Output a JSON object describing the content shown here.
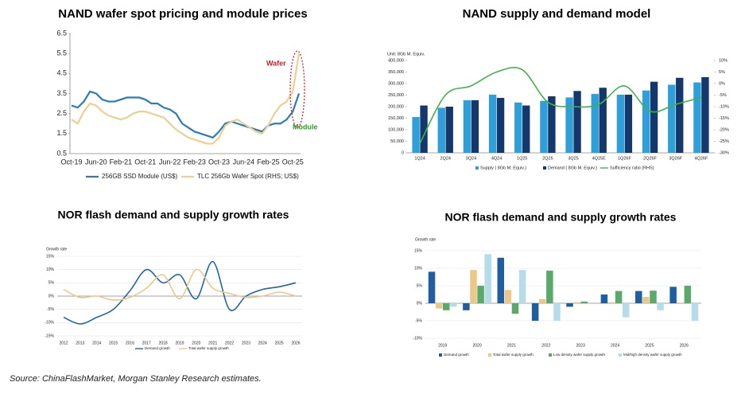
{
  "chart_data": [
    {
      "type": "line",
      "title": "NAND wafer spot pricing and module prices",
      "categories": [
        "Oct-19",
        null,
        null,
        null,
        "Jun-20",
        null,
        null,
        null,
        "Feb-21",
        null,
        null,
        null,
        "Oct-21",
        null,
        null,
        null,
        "Jun-22",
        null,
        null,
        null,
        "Feb-23",
        null,
        null,
        null,
        "Oct-23",
        null,
        null,
        null,
        "Jun-24",
        null,
        null,
        null,
        "Feb-25",
        null,
        null,
        null,
        "Oct-25",
        null
      ],
      "series": [
        {
          "name": "256GB SSD Module (US$)",
          "color": "#2b7bb9",
          "values": [
            2.9,
            2.8,
            3.1,
            3.6,
            3.5,
            3.2,
            3.1,
            3.1,
            3.2,
            3.3,
            3.3,
            3.3,
            3.2,
            3.0,
            3.0,
            2.8,
            2.7,
            2.5,
            2.0,
            1.8,
            1.6,
            1.5,
            1.4,
            1.3,
            1.6,
            2.0,
            2.1,
            2.0,
            1.9,
            1.8,
            1.7,
            1.6,
            1.9,
            2.0,
            2.0,
            2.2,
            2.6,
            3.5
          ]
        },
        {
          "name": "TLC 256Gb Wafer Spot (RHS; US$)",
          "color": "#ecd08f",
          "values": [
            2.2,
            2.0,
            2.6,
            3.0,
            2.9,
            2.6,
            2.4,
            2.3,
            2.2,
            2.3,
            2.5,
            2.6,
            2.6,
            2.5,
            2.4,
            2.3,
            2.0,
            1.7,
            1.5,
            1.3,
            1.2,
            1.1,
            1.0,
            1.0,
            1.3,
            1.9,
            2.1,
            2.2,
            2.0,
            1.8,
            1.6,
            1.5,
            1.9,
            2.5,
            2.9,
            3.1,
            3.6,
            5.5
          ]
        }
      ],
      "ylim": [
        0.5,
        6.5
      ],
      "yticks": [
        0.5,
        1.5,
        2.5,
        3.5,
        4.5,
        5.5,
        6.5
      ],
      "grid": false,
      "annotations": [
        {
          "text": "Wafer",
          "color": "#d0202a"
        },
        {
          "text": "Module",
          "color": "#2aa02a"
        }
      ]
    },
    {
      "type": "bar",
      "title": "NAND supply and demand model",
      "ylabel": "Unit: 8Gb M. Equiv.",
      "categories": [
        "1Q24",
        "2Q24",
        "3Q24",
        "4Q24",
        "1Q25",
        "2Q25",
        "3Q25",
        "4Q25E",
        "1Q26F",
        "2Q26F",
        "3Q26F",
        "4Q26F"
      ],
      "series": [
        {
          "name": "Supply ( 8Gb M. Equiv.)",
          "color": "#2e9fd8",
          "values": [
            155000,
            195000,
            228000,
            252000,
            218000,
            225000,
            240000,
            255000,
            252000,
            270000,
            295000,
            305000
          ]
        },
        {
          "name": "Demand ( 8Gb M. Equiv.)",
          "color": "#14386b",
          "values": [
            205000,
            200000,
            228000,
            238000,
            205000,
            245000,
            268000,
            282000,
            252000,
            308000,
            325000,
            328000
          ]
        },
        {
          "name": "Sufficiency ratio (RHS)",
          "color": "#3cb44b",
          "type": "line",
          "axis": "y2",
          "values": [
            -26,
            -5,
            -1,
            5,
            6,
            -8,
            -10,
            -9,
            -1,
            -12,
            -9,
            -6
          ]
        }
      ],
      "ylim": [
        0,
        400000
      ],
      "yticks": [
        0,
        {
          "value": 50000,
          "label": "50,000"
        },
        {
          "value": 100000,
          "label": "100,000"
        },
        {
          "value": 150000,
          "label": "150,000"
        },
        {
          "value": 200000,
          "label": "200,000"
        },
        {
          "value": 250000,
          "label": "250,000"
        },
        {
          "value": 300000,
          "label": "300,000"
        },
        {
          "value": 350000,
          "label": "350,000"
        },
        {
          "value": 400000,
          "label": "400,000"
        }
      ],
      "y2lim": [
        -30,
        10
      ],
      "y2ticks": [
        {
          "value": -30,
          "label": "-30%"
        },
        {
          "value": -25,
          "label": "-25%"
        },
        {
          "value": -20,
          "label": "-20%"
        },
        {
          "value": -15,
          "label": "-15%"
        },
        {
          "value": -10,
          "label": "-10%"
        },
        {
          "value": -5,
          "label": "-5%"
        },
        {
          "value": 0,
          "label": "0%"
        },
        {
          "value": 5,
          "label": "5%"
        },
        {
          "value": 10,
          "label": "10%"
        }
      ],
      "grid": false
    },
    {
      "type": "line",
      "title": "NOR flash demand and supply growth rates",
      "ylabel": "Growth rate",
      "smooth": true,
      "categories": [
        "2012",
        "2013",
        "2014",
        "2015",
        "2016",
        "2017",
        "2018",
        "2019",
        "2020",
        "2021",
        "2022",
        "2023",
        "2024",
        "2025",
        "2026"
      ],
      "series": [
        {
          "name": "Demand growth",
          "color": "#2166a8",
          "values": [
            -8,
            -10.5,
            -8,
            -5,
            2,
            10,
            5,
            8,
            -1,
            13,
            -5,
            0,
            2.5,
            3.5,
            5
          ]
        },
        {
          "name": "Total wafer supply growth",
          "color": "#e9c98a",
          "values": [
            2.5,
            -0.5,
            0,
            -1.5,
            -0.5,
            3,
            8,
            -1,
            10,
            3,
            1,
            -0.5,
            0,
            1.5,
            0
          ]
        }
      ],
      "ylim": [
        -15,
        15
      ],
      "yticks": [
        {
          "value": -15,
          "label": "-15%"
        },
        {
          "value": -10,
          "label": "-10%"
        },
        {
          "value": -5,
          "label": "-5%"
        },
        {
          "value": 0,
          "label": "0%"
        },
        {
          "value": 5,
          "label": "5%"
        },
        {
          "value": 10,
          "label": "10%"
        },
        {
          "value": 15,
          "label": "15%"
        }
      ],
      "grid": true
    },
    {
      "type": "bar",
      "title": "NOR flash demand and supply growth rates",
      "ylabel": "Growth rate",
      "categories": [
        "2019",
        "2020",
        "2021",
        "2022",
        "2023",
        "2024",
        "2025",
        "2026"
      ],
      "series": [
        {
          "name": "Demand growth",
          "color": "#1f5fa0",
          "values": [
            9,
            -2,
            13,
            -5,
            -1,
            2.5,
            3.5,
            4.7
          ]
        },
        {
          "name": "Total wafer supply growth",
          "color": "#e8c98a",
          "values": [
            -1.5,
            9.5,
            3.8,
            1.2,
            0.3,
            0.3,
            1.8,
            0.2
          ]
        },
        {
          "name": "Low density wafer supply growth",
          "color": "#5aa86a",
          "values": [
            -2,
            5,
            -3,
            9.3,
            0.5,
            3.5,
            3.6,
            5
          ]
        },
        {
          "name": "Mid/high density wafer supply growth",
          "color": "#b5dce8",
          "values": [
            -1,
            14,
            9.5,
            -5,
            0,
            -4,
            -2,
            -5
          ]
        }
      ],
      "ylim": [
        -10,
        15
      ],
      "yticks": [
        {
          "value": -10,
          "label": "-10%"
        },
        {
          "value": -5,
          "label": "-5%"
        },
        {
          "value": 0,
          "label": "0%"
        },
        {
          "value": 5,
          "label": "5%"
        },
        {
          "value": 10,
          "label": "10%"
        },
        {
          "value": 15,
          "label": "15%"
        }
      ],
      "grid": true
    }
  ],
  "source": "Source: ChinaFlashMarket, Morgan Stanley Research estimates."
}
